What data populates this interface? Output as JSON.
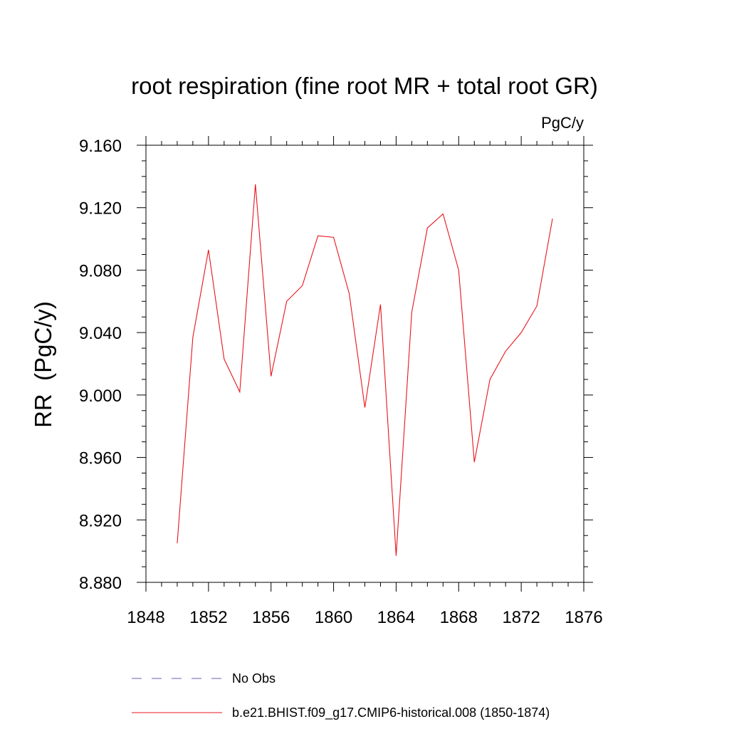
{
  "chart_data": {
    "type": "line",
    "title": "root respiration (fine root MR + total root GR)",
    "units_label": "PgC/y",
    "ylabel": "RR  (PgC/y)",
    "xlabel": "",
    "xlim": [
      1848,
      1876
    ],
    "ylim": [
      8.88,
      9.16
    ],
    "x_ticks": [
      1848,
      1852,
      1856,
      1860,
      1864,
      1868,
      1872,
      1876
    ],
    "x_tick_labels": [
      "1848",
      "1852",
      "1856",
      "1860",
      "1864",
      "1868",
      "1872",
      "1876"
    ],
    "y_ticks": [
      8.88,
      8.92,
      8.96,
      9.0,
      9.04,
      9.08,
      9.12,
      9.16
    ],
    "y_tick_labels": [
      "8.880",
      "8.920",
      "8.960",
      "9.000",
      "9.040",
      "9.080",
      "9.120",
      "9.160"
    ],
    "grid": false,
    "legend_position": "bottom",
    "series": [
      {
        "name": "b.e21.BHIST.f09_g17.CMIP6-historical.008 (1850-1874)",
        "color": "#e8141b",
        "dash": "solid",
        "x": [
          1850,
          1851,
          1852,
          1853,
          1854,
          1855,
          1856,
          1857,
          1858,
          1859,
          1860,
          1861,
          1862,
          1863,
          1864,
          1865,
          1866,
          1867,
          1868,
          1869,
          1870,
          1871,
          1872,
          1873,
          1874
        ],
        "values": [
          8.905,
          9.037,
          9.093,
          9.023,
          9.002,
          9.135,
          9.012,
          9.06,
          9.07,
          9.102,
          9.101,
          9.065,
          8.992,
          9.058,
          8.897,
          9.053,
          9.107,
          9.116,
          9.08,
          8.957,
          9.01,
          9.028,
          9.04,
          9.057,
          9.113
        ]
      }
    ],
    "legend": [
      {
        "name": "No Obs",
        "color": "#6b5fb5",
        "dash": "dashed"
      },
      {
        "name": "b.e21.BHIST.f09_g17.CMIP6-historical.008 (1850-1874)",
        "color": "#e8141b",
        "dash": "solid"
      }
    ]
  }
}
